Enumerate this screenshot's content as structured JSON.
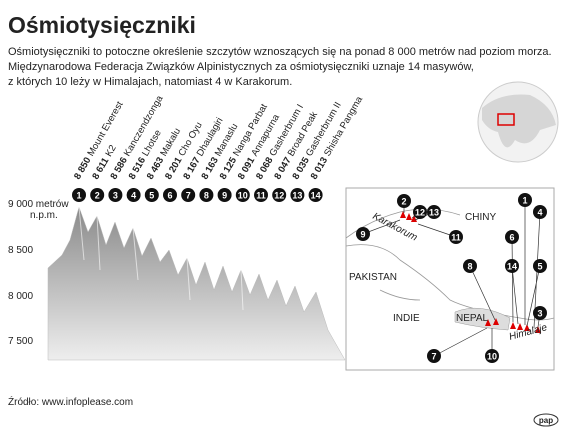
{
  "header": {
    "title": "Ośmiotysięczniki",
    "description": [
      "Ośmiotysięczniki to potoczne określenie szczytów wznoszących się na ponad 8 000 metrów nad poziom morza.",
      "Międzynarodowa Federacja Związków Alpinistycznych za ośmiotysięczniki uznaje 14 masywów,",
      "z których 10 leży w Himalajach, natomiast 4 w Karakorum."
    ]
  },
  "axis": {
    "labels": [
      "9 000 metrów",
      "8 500",
      "8 000",
      "7 500"
    ],
    "unit": "n.p.m."
  },
  "peaks": [
    {
      "number": "1",
      "height": "8 850",
      "name": "Mount Everest"
    },
    {
      "number": "2",
      "height": "8 611",
      "name": "K2"
    },
    {
      "number": "3",
      "height": "8 586",
      "name": "Kanczendzonga"
    },
    {
      "number": "4",
      "height": "8 516",
      "name": "Lhotse"
    },
    {
      "number": "5",
      "height": "8 463",
      "name": "Makalu"
    },
    {
      "number": "6",
      "height": "8 201",
      "name": "Cho Oyu"
    },
    {
      "number": "7",
      "height": "8 167",
      "name": "Dhaulagiri"
    },
    {
      "number": "8",
      "height": "8 163",
      "name": "Manaslu"
    },
    {
      "number": "9",
      "height": "8 125",
      "name": "Nanga Parbat"
    },
    {
      "number": "10",
      "height": "8 091",
      "name": "Annapurna"
    },
    {
      "number": "11",
      "height": "8 068",
      "name": "Gasherbrum I"
    },
    {
      "number": "12",
      "height": "8 047",
      "name": "Broad Peak"
    },
    {
      "number": "13",
      "height": "8 035",
      "name": "Gasherbrum II"
    },
    {
      "number": "14",
      "height": "8 013",
      "name": "Shisha Pangma"
    }
  ],
  "map": {
    "labels": [
      "CHINY",
      "PAKISTAN",
      "INDIE",
      "NEPAL",
      "Karakorum",
      "Himalaje"
    ]
  },
  "footer": {
    "source": "Źródło: www.infoplease.com",
    "logo": "pap"
  }
}
